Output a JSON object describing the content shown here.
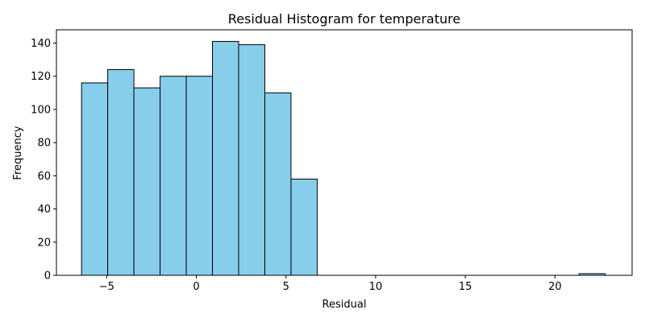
{
  "chart_data": {
    "type": "bar",
    "title": "Residual Histogram for temperature",
    "xlabel": "Residual",
    "ylabel": "Frequency",
    "xlim": [
      -7.8,
      24.3
    ],
    "ylim": [
      0,
      148
    ],
    "xticks": [
      -5,
      0,
      5,
      10,
      15,
      20
    ],
    "yticks": [
      0,
      20,
      40,
      60,
      80,
      100,
      120,
      140
    ],
    "bin_edges": [
      -6.4,
      -4.94,
      -3.48,
      -2.02,
      -0.56,
      0.9,
      2.36,
      3.82,
      5.28,
      6.74,
      8.2,
      9.66,
      11.12,
      12.58,
      14.04,
      15.5,
      16.96,
      18.42,
      19.88,
      21.34,
      22.8
    ],
    "counts": [
      116,
      124,
      113,
      120,
      120,
      141,
      139,
      110,
      58,
      0,
      0,
      0,
      0,
      0,
      0,
      0,
      0,
      0,
      0,
      1
    ],
    "bar_color": "#87ceeb",
    "edge_color": "#000000",
    "grid": false,
    "legend": "none"
  }
}
